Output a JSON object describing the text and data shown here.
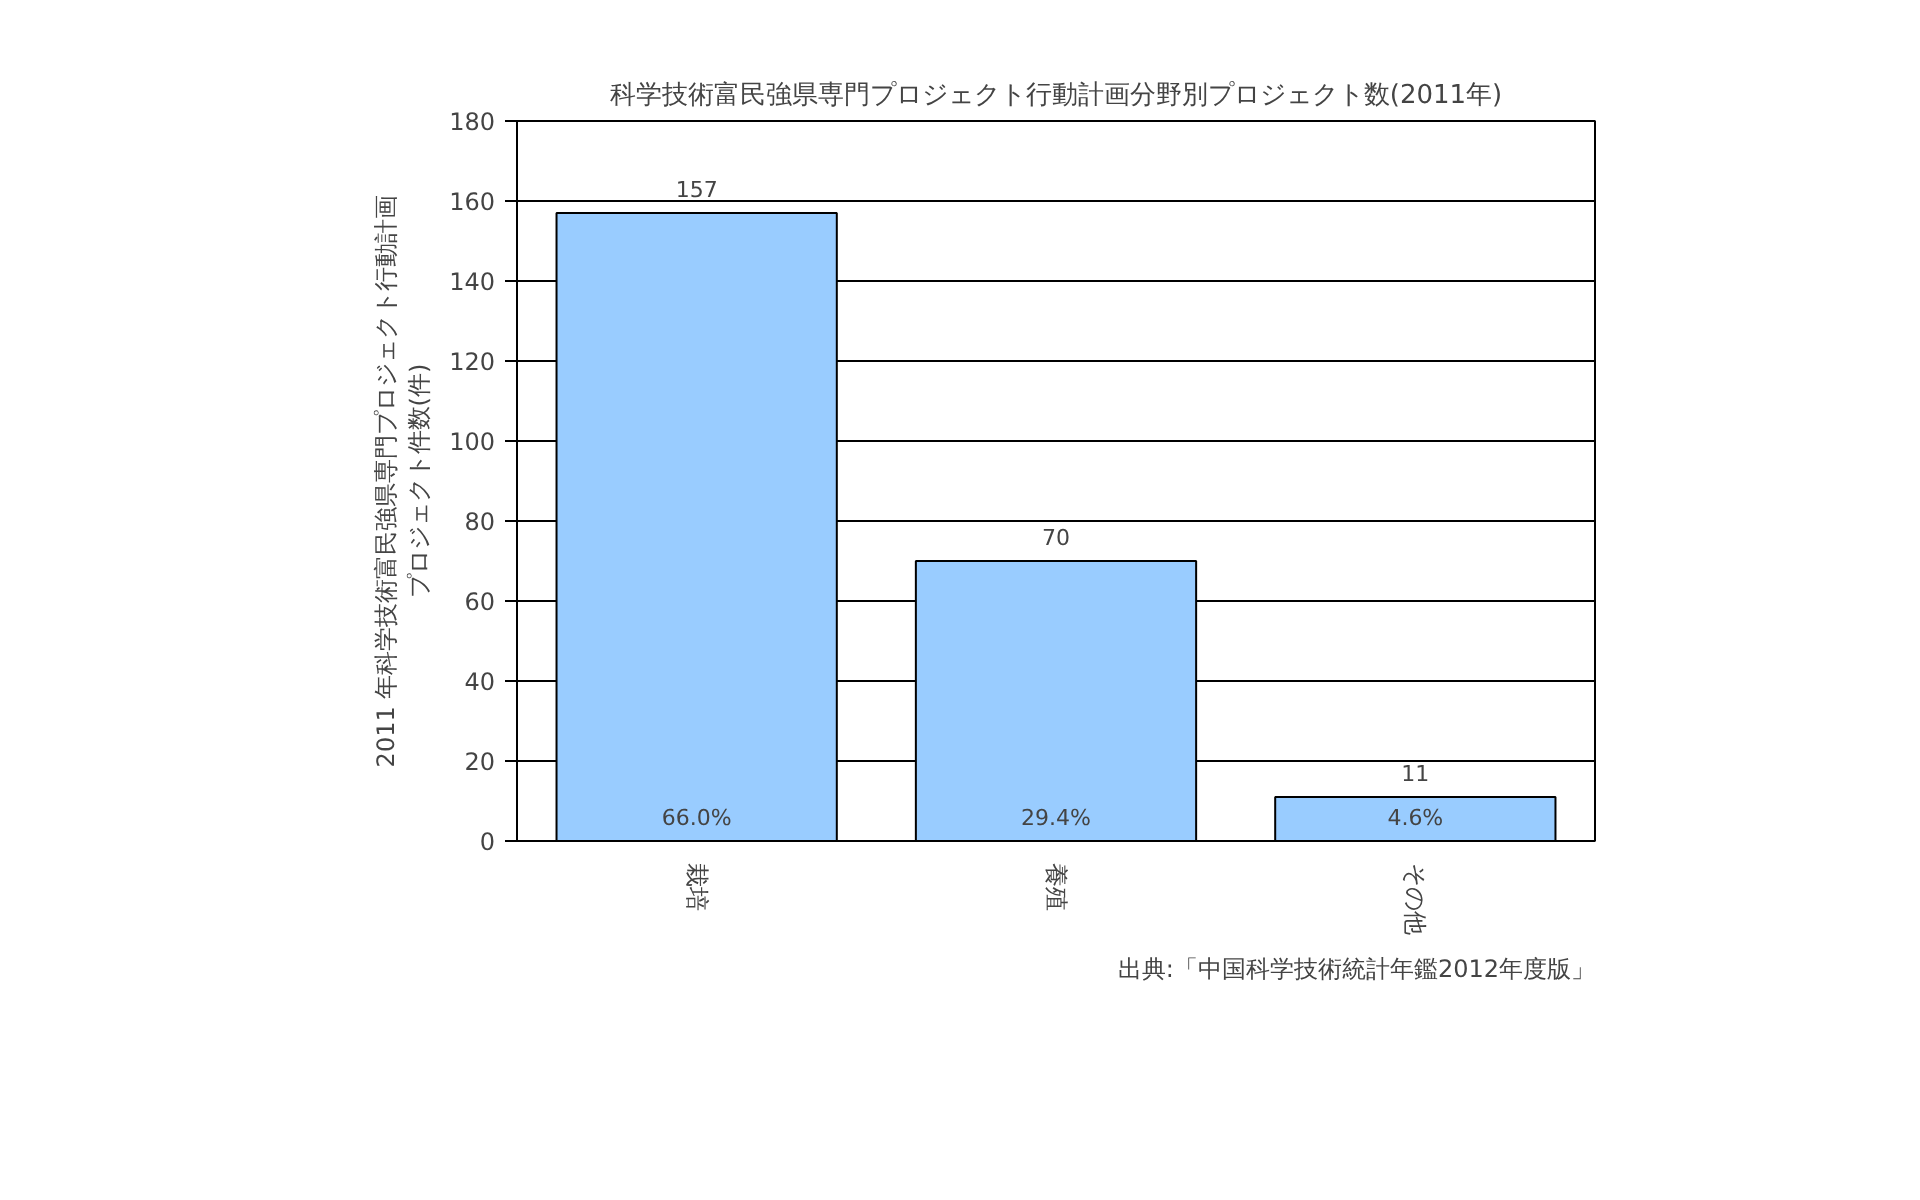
{
  "chart_data": {
    "type": "bar",
    "title": "科学技術富民強県専門プロジェクト行動計画分野別プロジェクト数(2011年)",
    "ylabel": "2011 年科学技術富民強県専門プロジェクト行動計画プロジェクト件数(件)",
    "categories": [
      "栽培",
      "養殖",
      "その他"
    ],
    "values": [
      157,
      70,
      11
    ],
    "color": "#99ccff",
    "data_labels": true,
    "ylim": [
      0,
      180
    ],
    "yticks": [
      0,
      20,
      40,
      60,
      80,
      100,
      120,
      140,
      160,
      180
    ],
    "grid": "y",
    "annotations": [
      "66.0%",
      "29.4%",
      "4.6%",
      "出典:「中国科学技術統計年鑑2012年度版」"
    ]
  }
}
